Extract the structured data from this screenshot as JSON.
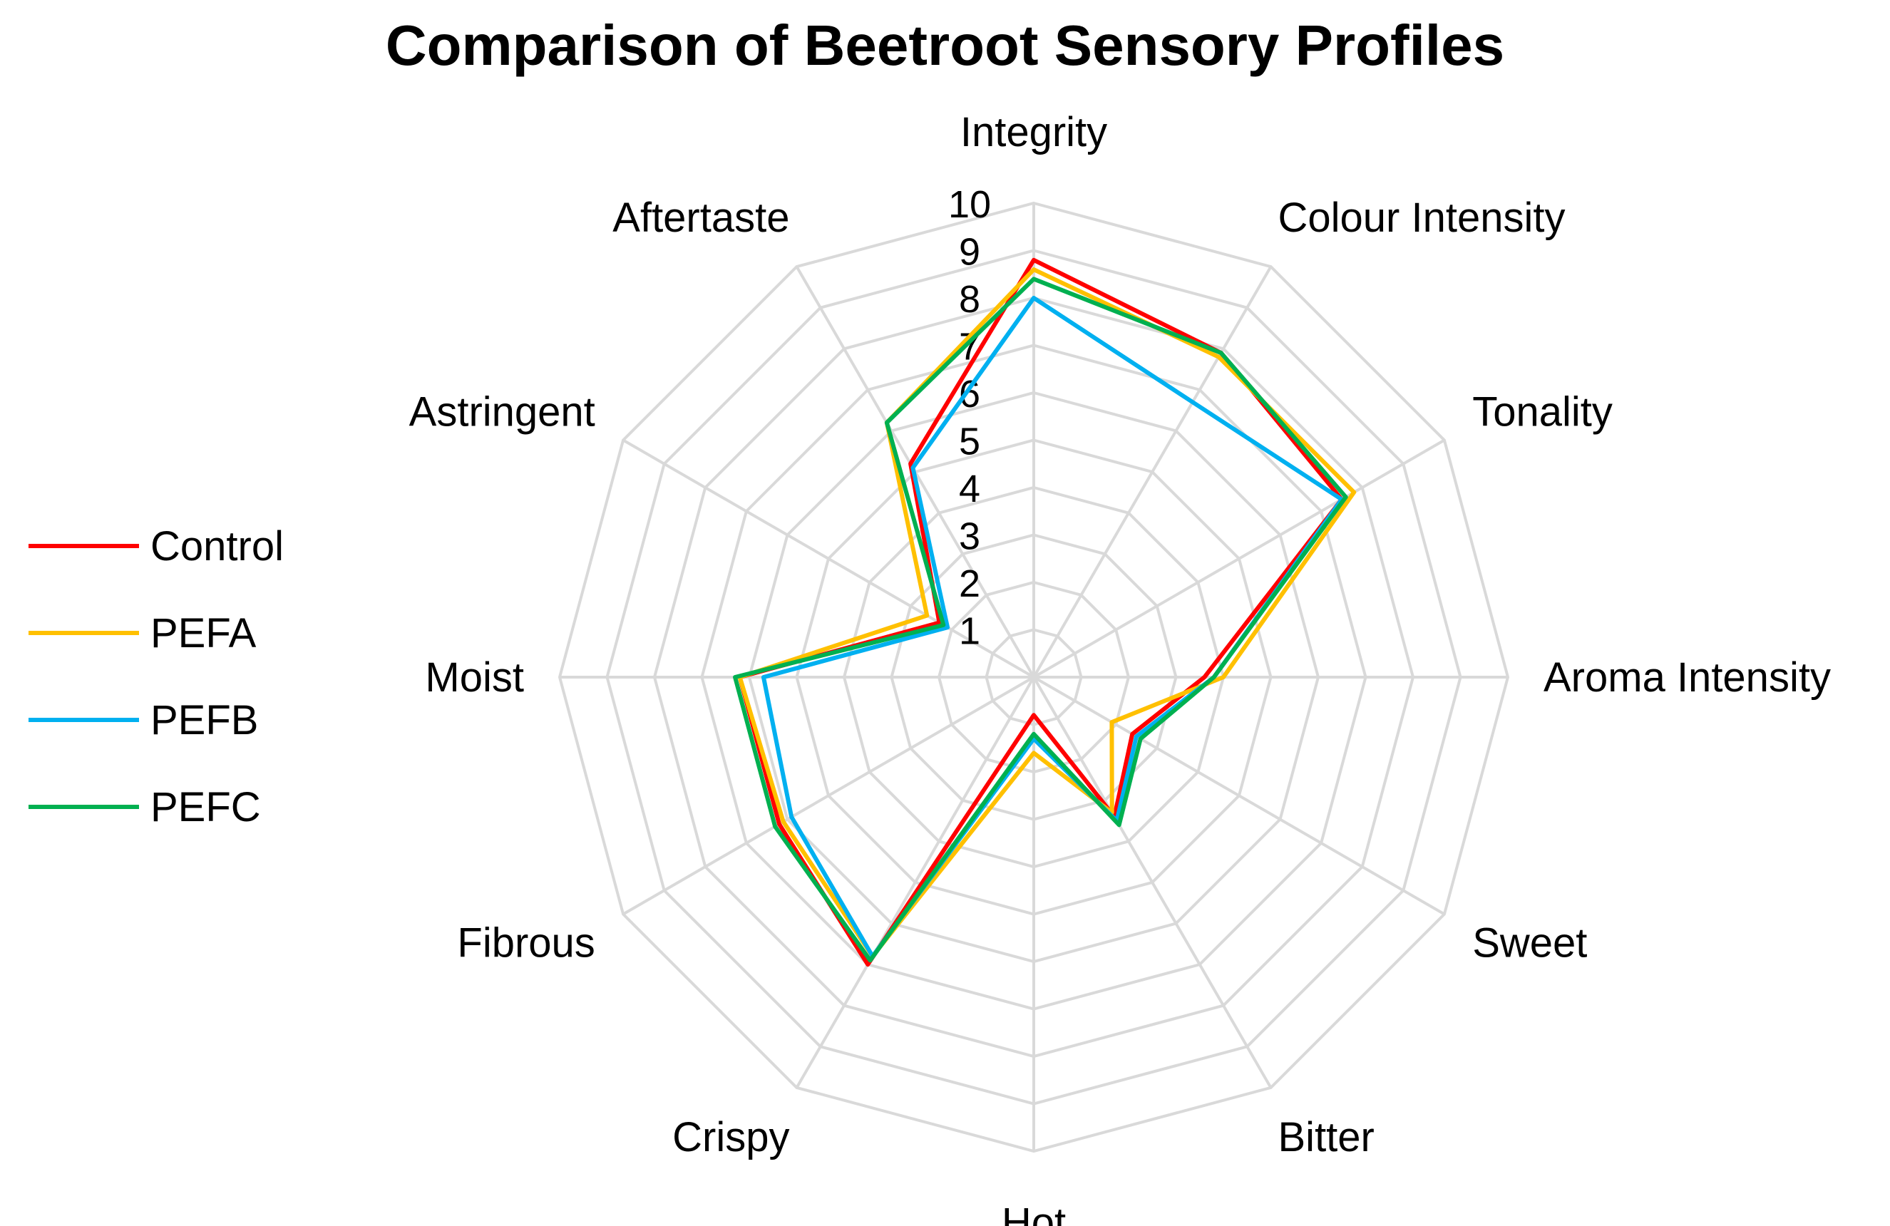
{
  "chart_data": {
    "type": "radar",
    "title": "Comparison of Beetroot Sensory Profiles",
    "axes": [
      "Integrity",
      "Colour Intensity",
      "Tonality",
      "Aroma Intensity",
      "Sweet",
      "Bitter",
      "Hot",
      "Crispy",
      "Fibrous",
      "Moist",
      "Astringent",
      "Aftertaste"
    ],
    "rlim": [
      0,
      10
    ],
    "ticks": [
      "1",
      "2",
      "3",
      "4",
      "5",
      "6",
      "7",
      "8",
      "9",
      "10"
    ],
    "grid": true,
    "legend_position": "left",
    "series": [
      {
        "name": "Control",
        "color": "#ff0000",
        "values": [
          8.8,
          7.9,
          7.5,
          3.6,
          2.4,
          3.4,
          0.8,
          7.0,
          6.2,
          6.2,
          2.3,
          5.2
        ]
      },
      {
        "name": "PEFA",
        "color": "#ffc000",
        "values": [
          8.6,
          7.8,
          7.8,
          4.0,
          1.9,
          3.3,
          1.6,
          6.8,
          6.1,
          6.2,
          2.6,
          6.2
        ]
      },
      {
        "name": "PEFB",
        "color": "#00b0f0",
        "values": [
          8.0,
          6.7,
          7.5,
          3.8,
          2.5,
          3.5,
          1.3,
          6.8,
          5.9,
          5.7,
          2.1,
          5.1
        ]
      },
      {
        "name": "PEFC",
        "color": "#00b050",
        "values": [
          8.4,
          7.9,
          7.6,
          3.8,
          2.6,
          3.6,
          1.2,
          6.9,
          6.3,
          6.3,
          2.2,
          6.2
        ]
      }
    ]
  }
}
